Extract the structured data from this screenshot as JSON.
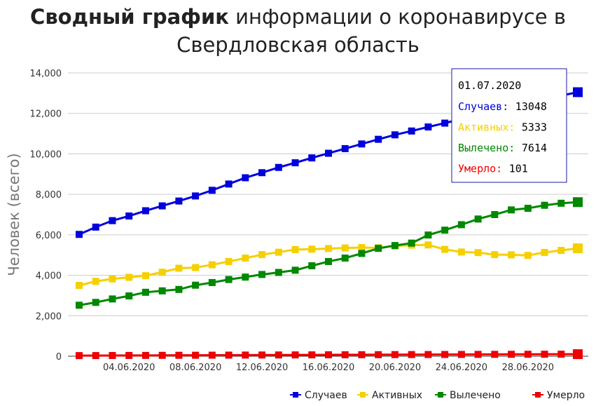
{
  "title": {
    "bold": "Сводный график",
    "line1_rest": " информации о коронавирусе в",
    "line2": "Свердловская область"
  },
  "chart_data": {
    "type": "line",
    "ylabel": "Человек (всего)",
    "ylim": [
      0,
      14000
    ],
    "yticks": [
      0,
      2000,
      4000,
      6000,
      8000,
      10000,
      12000,
      14000
    ],
    "ytick_labels": [
      "0",
      "2,000",
      "4,000",
      "6,000",
      "8,000",
      "10,000",
      "12,000",
      "14,000"
    ],
    "x": [
      "01.06.2020",
      "02.06.2020",
      "03.06.2020",
      "04.06.2020",
      "05.06.2020",
      "06.06.2020",
      "07.06.2020",
      "08.06.2020",
      "09.06.2020",
      "10.06.2020",
      "11.06.2020",
      "12.06.2020",
      "13.06.2020",
      "14.06.2020",
      "15.06.2020",
      "16.06.2020",
      "17.06.2020",
      "18.06.2020",
      "19.06.2020",
      "20.06.2020",
      "21.06.2020",
      "22.06.2020",
      "23.06.2020",
      "24.06.2020",
      "25.06.2020",
      "26.06.2020",
      "27.06.2020",
      "28.06.2020",
      "29.06.2020",
      "30.06.2020",
      "01.07.2020"
    ],
    "xtick_labels": [
      {
        "index": 3,
        "label": "04.06.2020"
      },
      {
        "index": 7,
        "label": "08.06.2020"
      },
      {
        "index": 11,
        "label": "12.06.2020"
      },
      {
        "index": 15,
        "label": "16.06.2020"
      },
      {
        "index": 19,
        "label": "20.06.2020"
      },
      {
        "index": 23,
        "label": "24.06.2020"
      },
      {
        "index": 27,
        "label": "28.06.2020"
      }
    ],
    "series": [
      {
        "name": "Случаев",
        "color": "#0000dd",
        "values": [
          6020,
          6380,
          6700,
          6930,
          7190,
          7430,
          7670,
          7920,
          8200,
          8510,
          8820,
          9070,
          9330,
          9560,
          9800,
          10030,
          10260,
          10490,
          10720,
          10940,
          11130,
          11330,
          11520,
          11720,
          11920,
          12120,
          12320,
          12520,
          12720,
          12880,
          13048
        ]
      },
      {
        "name": "Активных",
        "color": "#f5d000",
        "values": [
          3500,
          3700,
          3820,
          3900,
          3980,
          4150,
          4350,
          4380,
          4520,
          4680,
          4850,
          5020,
          5140,
          5270,
          5290,
          5320,
          5350,
          5370,
          5360,
          5450,
          5490,
          5500,
          5280,
          5150,
          5120,
          5020,
          5010,
          4980,
          5130,
          5230,
          5333
        ]
      },
      {
        "name": "Вылечено",
        "color": "#008800",
        "values": [
          2520,
          2660,
          2830,
          2980,
          3160,
          3230,
          3300,
          3510,
          3640,
          3790,
          3910,
          4040,
          4140,
          4250,
          4470,
          4680,
          4850,
          5080,
          5330,
          5470,
          5590,
          5990,
          6230,
          6500,
          6780,
          7000,
          7230,
          7310,
          7460,
          7560,
          7614
        ]
      },
      {
        "name": "Умерло",
        "color": "#ee0000",
        "values": [
          30,
          32,
          35,
          38,
          40,
          43,
          46,
          48,
          51,
          54,
          57,
          60,
          62,
          65,
          67,
          70,
          72,
          75,
          77,
          80,
          82,
          84,
          86,
          88,
          90,
          92,
          94,
          96,
          98,
          100,
          101
        ]
      }
    ],
    "legend": {
      "position": "bottom-right"
    },
    "grid": true,
    "tooltip": {
      "date": "01.07.2020",
      "rows": [
        {
          "label": "Случаев:",
          "value": "13048",
          "color": "#0000dd"
        },
        {
          "label": "Активных:",
          "value": "5333",
          "color": "#f5d000"
        },
        {
          "label": "Вылечено:",
          "value": "7614",
          "color": "#008800"
        },
        {
          "label": "Умерло:",
          "value": "101",
          "color": "#ee0000"
        }
      ]
    }
  }
}
